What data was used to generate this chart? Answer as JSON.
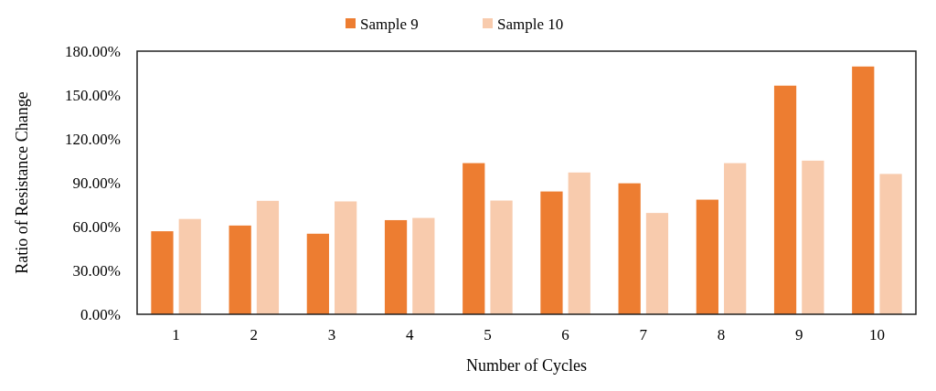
{
  "chart_data": {
    "type": "bar",
    "xlabel": "Number of Cycles",
    "ylabel": "Ratio of Resistance Change",
    "categories": [
      "1",
      "2",
      "3",
      "4",
      "5",
      "6",
      "7",
      "8",
      "9",
      "10"
    ],
    "series": [
      {
        "name": "Sample 9",
        "color": "#ed7d31",
        "values": [
          56.8,
          60.7,
          55.1,
          64.4,
          103.4,
          84.0,
          89.6,
          78.4,
          156.4,
          169.5
        ]
      },
      {
        "name": "Sample 10",
        "color": "#f8cbad",
        "values": [
          65.2,
          77.6,
          77.2,
          65.9,
          77.8,
          97.0,
          69.3,
          103.4,
          105.1,
          96.0
        ]
      }
    ],
    "ylim": [
      0,
      180
    ],
    "yticks": [
      {
        "value": 0,
        "label": "0.00%"
      },
      {
        "value": 30,
        "label": "30.00%"
      },
      {
        "value": 60,
        "label": "60.00%"
      },
      {
        "value": 90,
        "label": "90.00%"
      },
      {
        "value": 120,
        "label": "120.00%"
      },
      {
        "value": 150,
        "label": "150.00%"
      },
      {
        "value": 180,
        "label": "180.00%"
      }
    ],
    "grid": false,
    "legend": "top"
  }
}
